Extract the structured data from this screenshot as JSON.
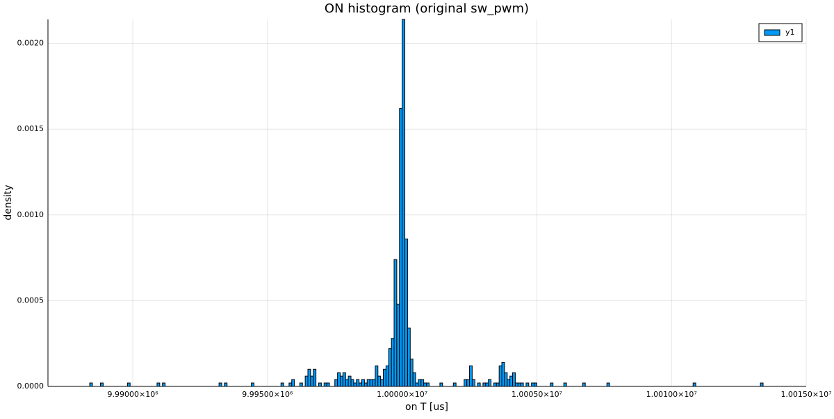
{
  "chart_data": {
    "type": "histogram",
    "title": "ON histogram (original sw_pwm)",
    "x_label": "on T [us]",
    "y_label": "density",
    "series": [
      {
        "name": "y1",
        "color": "#009af9",
        "bins": [
          9988400,
          9988500,
          9988600,
          9988700,
          9988800,
          9988900,
          9989000,
          9989100,
          9989200,
          9989300,
          9989400,
          9989500,
          9989600,
          9989700,
          9989800,
          9989900,
          9990000,
          9990100,
          9990200,
          9990300,
          9990400,
          9990500,
          9990600,
          9990700,
          9990800,
          9990900,
          9991000,
          9991100,
          9991200,
          9991300,
          9991400,
          9991500,
          9991600,
          9991700,
          9991800,
          9991900,
          9992000,
          9992100,
          9992200,
          9992300,
          9992400,
          9992500,
          9992600,
          9992700,
          9992800,
          9992900,
          9993000,
          9993100,
          9993200,
          9993300,
          9993400,
          9993500,
          9993600,
          9993700,
          9993800,
          9993900,
          9994000,
          9994100,
          9994200,
          9994300,
          9994400,
          9994500,
          9994600,
          9994700,
          9994800,
          9994900,
          9995000,
          9995100,
          9995200,
          9995300,
          9995400,
          9995500,
          9995600,
          9995700,
          9995800,
          9995900,
          9996000,
          9996100,
          9996200,
          9996300,
          9996400,
          9996500,
          9996600,
          9996700,
          9996800,
          9996900,
          9997000,
          9997100,
          9997200,
          9997300,
          9997400,
          9997500,
          9997600,
          9997700,
          9997800,
          9997900,
          9998000,
          9998100,
          9998200,
          9998300,
          9998400,
          9998500,
          9998600,
          9998700,
          9998800,
          9998900,
          9999000,
          9999100,
          9999200,
          9999300,
          9999400,
          9999500,
          9999600,
          9999700,
          9999800,
          9999900,
          10000000,
          10000100,
          10000200,
          10000300,
          10000400,
          10000500,
          10000600,
          10000700,
          10000800,
          10000900,
          10001000,
          10001100,
          10001200,
          10001300,
          10001400,
          10001500,
          10001600,
          10001700,
          10001800,
          10001900,
          10002000,
          10002100,
          10002200,
          10002300,
          10002400,
          10002500,
          10002600,
          10002700,
          10002800,
          10002900,
          10003000,
          10003100,
          10003200,
          10003300,
          10003400,
          10003500,
          10003600,
          10003700,
          10003800,
          10003900,
          10004000,
          10004100,
          10004200,
          10004300,
          10004400,
          10004500,
          10004600,
          10004700,
          10004800,
          10004900,
          10005000,
          10005100,
          10005200,
          10005300,
          10005400,
          10005500,
          10005600,
          10005700,
          10005800,
          10005900,
          10006000,
          10006100,
          10006200,
          10006300,
          10006400,
          10006500,
          10006600,
          10006700,
          10006800,
          10006900,
          10007000,
          10007100,
          10007200,
          10007300,
          10007400,
          10007500,
          10007600,
          10007700,
          10007800,
          10007900,
          10008000,
          10008100,
          10008200,
          10008300,
          10008400,
          10008500,
          10008600,
          10008700,
          10008800,
          10008900,
          10009000,
          10009100,
          10009200,
          10009300,
          10009400,
          10009500,
          10009600,
          10009700,
          10009800,
          10009900,
          10010000,
          10010100,
          10010200,
          10010300,
          10010400,
          10010500,
          10010600,
          10010700,
          10010800,
          10010900,
          10011000,
          10011100,
          10011200,
          10011300,
          10011400,
          10011500,
          10011600,
          10011700,
          10011800,
          10011900,
          10012000,
          10012100,
          10012200,
          10012300,
          10012400,
          10012500,
          10012600,
          10012700,
          10012800,
          10012900,
          10013000,
          10013100,
          10013200,
          10013300,
          10013400
        ],
        "values": [
          2e-05,
          0,
          0,
          0,
          2e-05,
          0,
          0,
          0,
          0,
          0,
          0,
          0,
          0,
          0,
          2e-05,
          0,
          0,
          0,
          0,
          0,
          0,
          0,
          0,
          0,
          0,
          2e-05,
          0,
          2e-05,
          0,
          0,
          0,
          0,
          0,
          0,
          0,
          0,
          0,
          0,
          0,
          0,
          0,
          0,
          0,
          0,
          0,
          0,
          0,
          0,
          2e-05,
          0,
          2e-05,
          0,
          0,
          0,
          0,
          0,
          0,
          0,
          0,
          0,
          2e-05,
          0,
          0,
          0,
          0,
          0,
          0,
          0,
          0,
          0,
          0,
          2e-05,
          0,
          0,
          2e-05,
          4e-05,
          0,
          0,
          2e-05,
          0,
          6e-05,
          0.0001,
          6e-05,
          0.0001,
          0,
          2e-05,
          0,
          2e-05,
          2e-05,
          0,
          0,
          4e-05,
          8e-05,
          6e-05,
          8e-05,
          4e-05,
          6e-05,
          4e-05,
          2e-05,
          4e-05,
          2e-05,
          4e-05,
          2e-05,
          4e-05,
          4e-05,
          4e-05,
          0.00012,
          6e-05,
          4e-05,
          0.0001,
          0.00012,
          0.00022,
          0.00028,
          0.00074,
          0.00048,
          0.00162,
          0.00214,
          0.00086,
          0.00034,
          0.00016,
          8e-05,
          2e-05,
          4e-05,
          4e-05,
          2e-05,
          2e-05,
          0,
          0,
          0,
          0,
          2e-05,
          0,
          0,
          0,
          0,
          2e-05,
          0,
          0,
          0,
          4e-05,
          4e-05,
          0.00012,
          4e-05,
          0,
          2e-05,
          0,
          2e-05,
          2e-05,
          4e-05,
          0,
          2e-05,
          2e-05,
          0.00012,
          0.00014,
          8e-05,
          4e-05,
          6e-05,
          8e-05,
          2e-05,
          2e-05,
          2e-05,
          0,
          2e-05,
          0,
          2e-05,
          2e-05,
          0,
          0,
          0,
          0,
          0,
          2e-05,
          0,
          0,
          0,
          0,
          2e-05,
          0,
          0,
          0,
          0,
          0,
          0,
          2e-05,
          0,
          0,
          0,
          0,
          0,
          0,
          0,
          0,
          2e-05,
          0,
          0,
          0,
          0,
          0,
          0,
          0,
          0,
          0,
          0,
          0,
          0,
          0,
          0,
          0,
          0,
          0,
          0,
          0,
          0,
          0,
          0,
          0,
          0,
          0,
          0,
          0,
          0,
          0,
          0,
          0,
          2e-05,
          0,
          0,
          0,
          0,
          0,
          0,
          0,
          0,
          0,
          0,
          0,
          0,
          0,
          0,
          0,
          0,
          0,
          0,
          0,
          0,
          0,
          0,
          0,
          0,
          2e-05
        ]
      }
    ],
    "xlim": [
      9986850,
      10015000
    ],
    "xticks": [
      {
        "value": 9990000,
        "label": "9.99000×10⁶"
      },
      {
        "value": 9995000,
        "label": "9.99500×10⁶"
      },
      {
        "value": 10000000,
        "label": "1.00000×10⁷"
      },
      {
        "value": 10005000,
        "label": "1.00050×10⁷"
      },
      {
        "value": 10010000,
        "label": "1.00100×10⁷"
      },
      {
        "value": 10015000,
        "label": "1.00150×10⁷"
      }
    ],
    "ylim": [
      0,
      0.00214
    ],
    "yticks": [
      {
        "value": 0,
        "label": "0.0000"
      },
      0.0005,
      {
        "value": 0.001,
        "label": "0.0010"
      },
      0.0015,
      {
        "value": 0.002,
        "label": "0.0020"
      }
    ],
    "grid": true,
    "legend": "top-right"
  }
}
